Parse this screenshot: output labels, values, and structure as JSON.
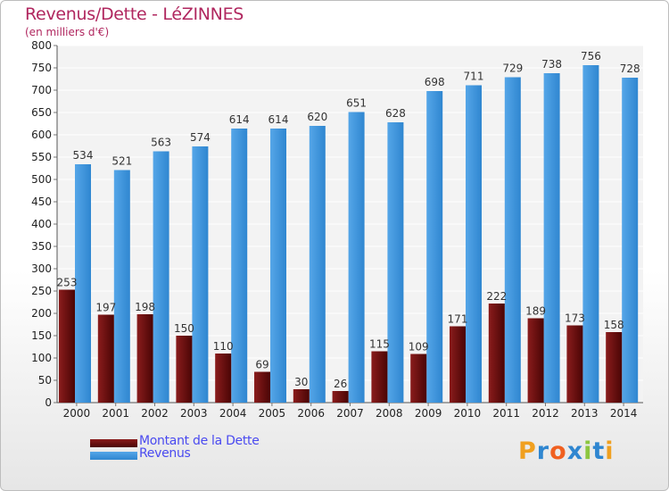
{
  "title": "Revenus/Dette - LéZINNES",
  "subtitle": "(en milliers d'€)",
  "colors": {
    "debt": "#8a1c1c",
    "debt_dark": "#4a0505",
    "revenue": "#55a6e8",
    "revenue_dark": "#2f86d0",
    "title": "#b0275f",
    "legend_text": "#4a4af0"
  },
  "legend": {
    "debt_label": "Montant de la Dette",
    "revenue_label": "Revenus"
  },
  "logo": {
    "text": "Proxiti",
    "letters": [
      "P",
      "r",
      "o",
      "x",
      "i",
      "t",
      "i"
    ],
    "letter_colors": [
      "#f0a020",
      "#2f86d0",
      "#f06020",
      "#2f86d0",
      "#8cc63f",
      "#2f86d0",
      "#f0a020"
    ]
  },
  "chart_data": {
    "type": "bar",
    "title": "Revenus/Dette - LéZINNES",
    "subtitle": "(en milliers d'€)",
    "categories": [
      "2000",
      "2001",
      "2002",
      "2003",
      "2004",
      "2005",
      "2006",
      "2007",
      "2008",
      "2009",
      "2010",
      "2011",
      "2012",
      "2013",
      "2014"
    ],
    "series": [
      {
        "name": "Montant de la Dette",
        "values": [
          253,
          197,
          198,
          150,
          110,
          69,
          30,
          26,
          115,
          109,
          171,
          222,
          189,
          173,
          158
        ]
      },
      {
        "name": "Revenus",
        "values": [
          534,
          521,
          563,
          574,
          614,
          614,
          620,
          651,
          628,
          698,
          711,
          729,
          738,
          756,
          728
        ]
      }
    ],
    "ylim": [
      0,
      800
    ],
    "yticks": [
      0,
      50,
      100,
      150,
      200,
      250,
      300,
      350,
      400,
      450,
      500,
      550,
      600,
      650,
      700,
      750,
      800
    ],
    "grid": true,
    "legend_position": "bottom-left"
  }
}
